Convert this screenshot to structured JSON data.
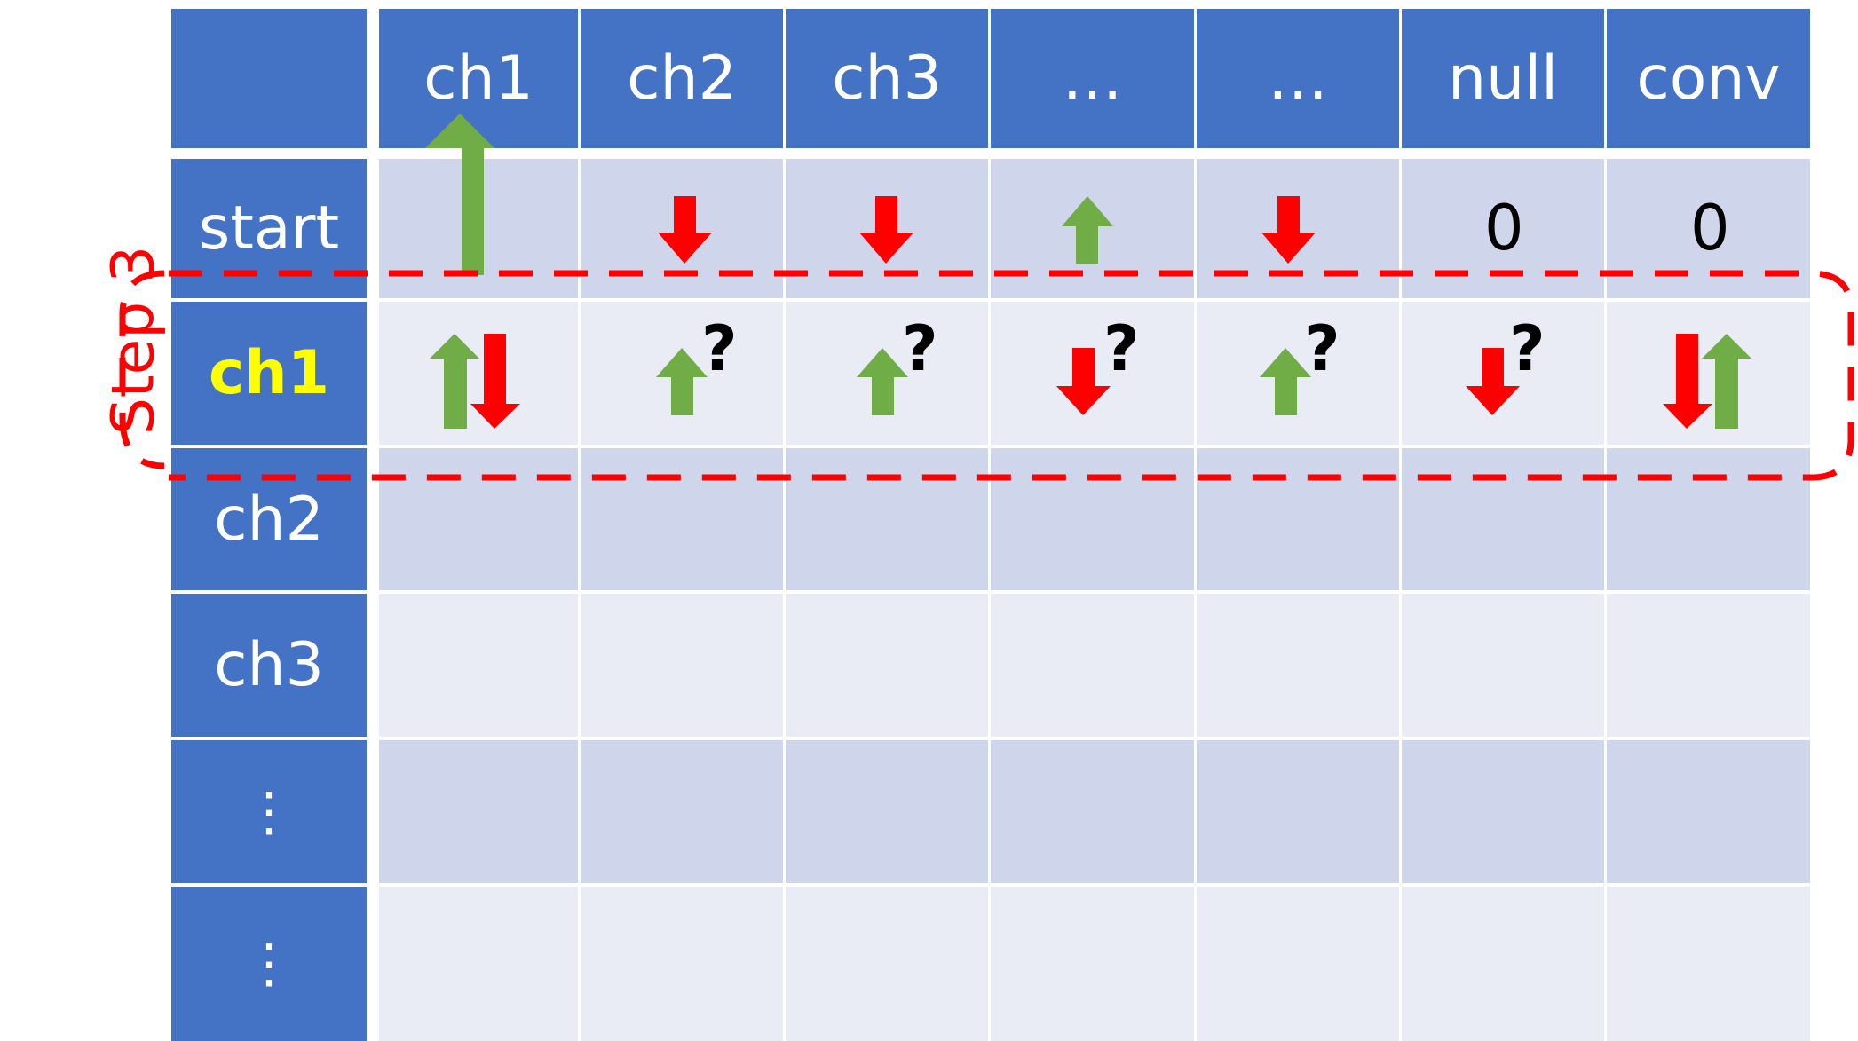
{
  "columns": [
    "ch1",
    "ch2",
    "ch3",
    "…",
    "…",
    "null",
    "conv"
  ],
  "rows": [
    "start",
    "ch1",
    "ch2",
    "ch3",
    "⋮",
    "⋮"
  ],
  "highlight_row_index": 1,
  "start_row_values": {
    "null": "0",
    "conv": "0"
  },
  "question_mark": "?",
  "step_label": "Step 3",
  "colors": {
    "header_blue": "#4472c4",
    "cell_dark": "#cfd5ea",
    "cell_light": "#e9ebf5",
    "up_arrow_green": "#70ad47",
    "down_arrow_red": "#ff0000",
    "highlight_text": "#ffff00",
    "dashed_box": "#ff0000"
  },
  "icons": {
    "up": "up-arrow-icon",
    "down": "down-arrow-icon",
    "question": "question-mark"
  }
}
